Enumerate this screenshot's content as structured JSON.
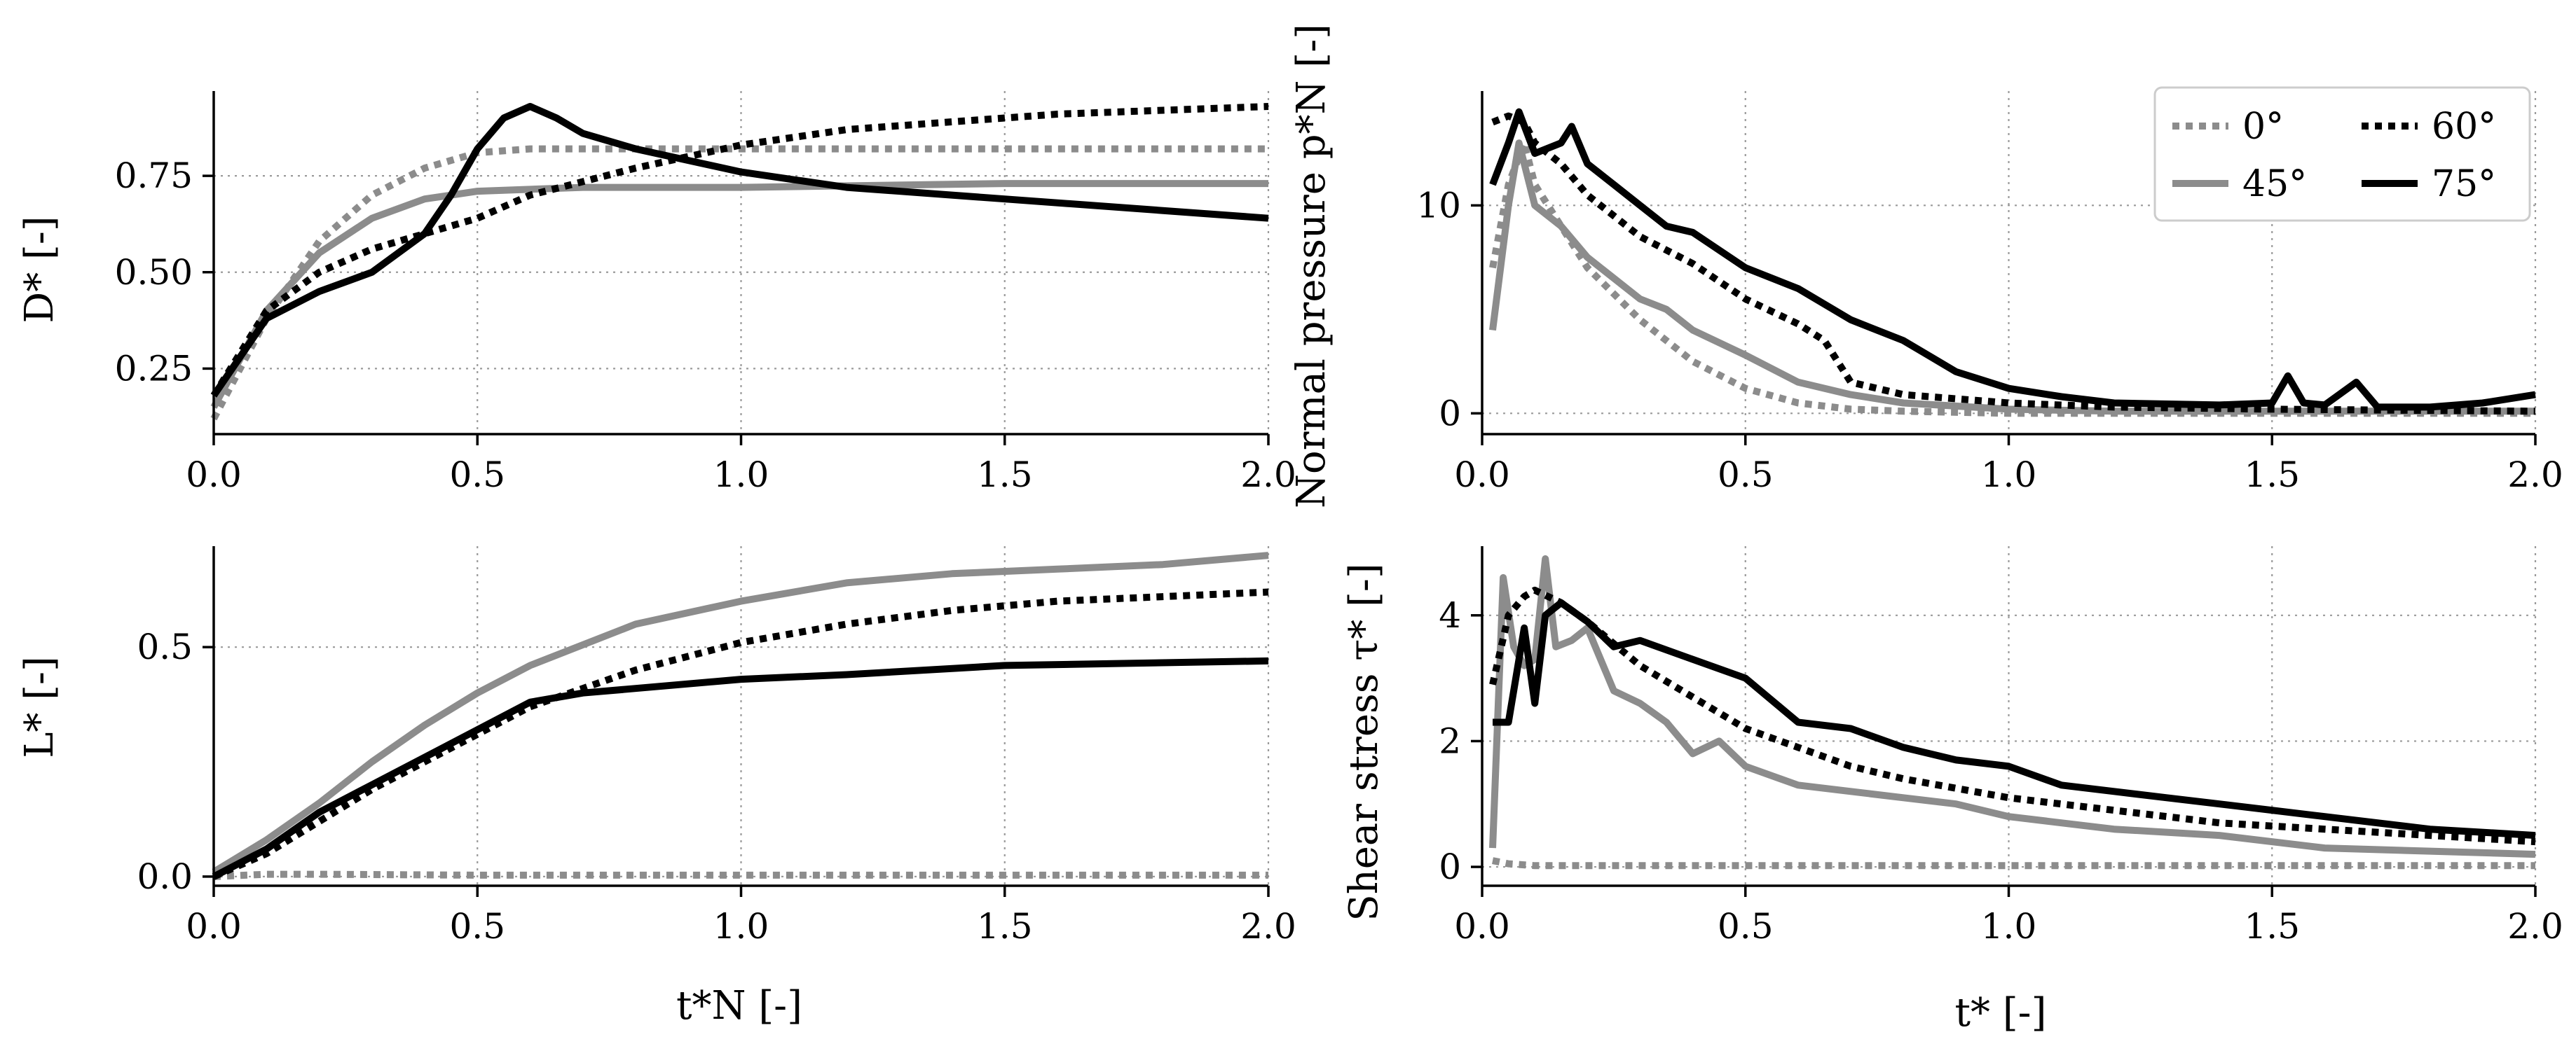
{
  "chart_data": [
    {
      "id": "D",
      "type": "line",
      "ylabel": "D* [-]",
      "xlabel": "",
      "xlim": [
        0,
        2.0
      ],
      "ylim": [
        0.08,
        0.97
      ],
      "xticks": [
        0,
        0.5,
        1.0,
        1.5,
        2.0
      ],
      "xtick_labels": [
        "0.0",
        "0.5",
        "1.0",
        "1.5",
        "2.0"
      ],
      "yticks": [
        0.25,
        0.5,
        0.75
      ],
      "ytick_labels": [
        "0.25",
        "0.50",
        "0.75"
      ],
      "grid": true,
      "series": [
        {
          "name": "0°",
          "x": [
            0,
            0.1,
            0.2,
            0.3,
            0.4,
            0.5,
            0.6,
            0.8,
            1.0,
            1.5,
            2.0
          ],
          "y": [
            0.12,
            0.38,
            0.58,
            0.7,
            0.77,
            0.81,
            0.82,
            0.82,
            0.82,
            0.82,
            0.82
          ]
        },
        {
          "name": "45°",
          "x": [
            0,
            0.1,
            0.2,
            0.3,
            0.4,
            0.5,
            0.7,
            1.0,
            1.5,
            2.0
          ],
          "y": [
            0.15,
            0.4,
            0.55,
            0.64,
            0.69,
            0.71,
            0.72,
            0.72,
            0.73,
            0.73
          ]
        },
        {
          "name": "60°",
          "x": [
            0,
            0.1,
            0.2,
            0.3,
            0.4,
            0.5,
            0.6,
            0.8,
            1.0,
            1.2,
            1.4,
            1.6,
            1.8,
            2.0
          ],
          "y": [
            0.18,
            0.4,
            0.5,
            0.56,
            0.6,
            0.64,
            0.7,
            0.77,
            0.83,
            0.87,
            0.89,
            0.91,
            0.92,
            0.93
          ]
        },
        {
          "name": "75°",
          "x": [
            0,
            0.1,
            0.2,
            0.3,
            0.4,
            0.45,
            0.5,
            0.55,
            0.6,
            0.65,
            0.7,
            0.8,
            1.0,
            1.2,
            1.5,
            2.0
          ],
          "y": [
            0.18,
            0.38,
            0.45,
            0.5,
            0.6,
            0.7,
            0.82,
            0.9,
            0.93,
            0.9,
            0.86,
            0.82,
            0.76,
            0.72,
            0.69,
            0.64
          ]
        }
      ]
    },
    {
      "id": "pN",
      "type": "line",
      "ylabel": "Normal pressure p*N [-]",
      "xlabel": "",
      "xlim": [
        0,
        2.0
      ],
      "ylim": [
        -1,
        15.5
      ],
      "xticks": [
        0,
        0.5,
        1.0,
        1.5,
        2.0
      ],
      "xtick_labels": [
        "0.0",
        "0.5",
        "1.0",
        "1.5",
        "2.0"
      ],
      "yticks": [
        0,
        10
      ],
      "ytick_labels": [
        "0",
        "10"
      ],
      "grid": true,
      "legend": {
        "placement": "top-right",
        "columns": 2
      },
      "series": [
        {
          "name": "0°",
          "x": [
            0.02,
            0.05,
            0.08,
            0.1,
            0.15,
            0.2,
            0.3,
            0.4,
            0.5,
            0.6,
            0.7,
            0.8,
            1.0,
            1.5,
            2.0
          ],
          "y": [
            7,
            11,
            13,
            11,
            9,
            7,
            4.5,
            2.5,
            1.2,
            0.5,
            0.2,
            0.1,
            0,
            0,
            0
          ]
        },
        {
          "name": "45°",
          "x": [
            0.02,
            0.05,
            0.07,
            0.1,
            0.15,
            0.2,
            0.25,
            0.3,
            0.35,
            0.4,
            0.5,
            0.6,
            0.7,
            0.8,
            1.0,
            1.2,
            1.5,
            2.0
          ],
          "y": [
            4,
            10,
            13,
            10,
            9,
            7.5,
            6.5,
            5.5,
            5,
            4,
            2.8,
            1.5,
            0.9,
            0.5,
            0.2,
            0.1,
            0.1,
            0.1
          ]
        },
        {
          "name": "60°",
          "x": [
            0.02,
            0.05,
            0.08,
            0.1,
            0.15,
            0.2,
            0.25,
            0.3,
            0.4,
            0.5,
            0.6,
            0.65,
            0.7,
            0.8,
            1.0,
            1.2,
            1.5,
            2.0
          ],
          "y": [
            14,
            14.3,
            14,
            13,
            12,
            10.5,
            9.5,
            8.5,
            7.2,
            5.5,
            4.3,
            3.5,
            1.5,
            0.9,
            0.5,
            0.3,
            0.2,
            0.1
          ]
        },
        {
          "name": "75°",
          "x": [
            0.02,
            0.05,
            0.07,
            0.1,
            0.15,
            0.17,
            0.2,
            0.25,
            0.3,
            0.35,
            0.4,
            0.5,
            0.6,
            0.7,
            0.8,
            0.9,
            1.0,
            1.1,
            1.2,
            1.4,
            1.5,
            1.53,
            1.56,
            1.6,
            1.66,
            1.7,
            1.8,
            1.9,
            2.0
          ],
          "y": [
            11,
            13,
            14.5,
            12.5,
            13,
            13.8,
            12,
            11,
            10,
            9,
            8.7,
            7,
            6,
            4.5,
            3.5,
            2,
            1.2,
            0.8,
            0.5,
            0.4,
            0.5,
            1.8,
            0.5,
            0.4,
            1.5,
            0.3,
            0.3,
            0.5,
            0.9
          ]
        }
      ]
    },
    {
      "id": "L",
      "type": "line",
      "ylabel": "L* [-]",
      "xlabel": "t*N [-]",
      "xlim": [
        0,
        2.0
      ],
      "ylim": [
        -0.02,
        0.72
      ],
      "xticks": [
        0,
        0.5,
        1.0,
        1.5,
        2.0
      ],
      "xtick_labels": [
        "0.0",
        "0.5",
        "1.0",
        "1.5",
        "2.0"
      ],
      "yticks": [
        0.0,
        0.5
      ],
      "ytick_labels": [
        "0.0",
        "0.5"
      ],
      "grid": true,
      "series": [
        {
          "name": "0°",
          "x": [
            0,
            0.1,
            0.2,
            0.5,
            1.0,
            1.5,
            2.0
          ],
          "y": [
            0,
            0.005,
            0.005,
            0.003,
            0.003,
            0.003,
            0.003
          ]
        },
        {
          "name": "45°",
          "x": [
            0,
            0.1,
            0.2,
            0.3,
            0.4,
            0.5,
            0.6,
            0.8,
            1.0,
            1.2,
            1.4,
            1.6,
            1.8,
            2.0
          ],
          "y": [
            0.01,
            0.08,
            0.16,
            0.25,
            0.33,
            0.4,
            0.46,
            0.55,
            0.6,
            0.64,
            0.66,
            0.67,
            0.68,
            0.7
          ]
        },
        {
          "name": "60°",
          "x": [
            0,
            0.1,
            0.2,
            0.3,
            0.4,
            0.5,
            0.6,
            0.7,
            0.8,
            1.0,
            1.2,
            1.4,
            1.6,
            1.8,
            2.0
          ],
          "y": [
            0,
            0.05,
            0.12,
            0.19,
            0.25,
            0.31,
            0.37,
            0.41,
            0.45,
            0.51,
            0.55,
            0.58,
            0.6,
            0.61,
            0.62
          ]
        },
        {
          "name": "75°",
          "x": [
            0,
            0.1,
            0.2,
            0.3,
            0.4,
            0.5,
            0.6,
            0.7,
            0.8,
            1.0,
            1.2,
            1.5,
            2.0
          ],
          "y": [
            0,
            0.06,
            0.14,
            0.2,
            0.26,
            0.32,
            0.38,
            0.4,
            0.41,
            0.43,
            0.44,
            0.46,
            0.47
          ]
        }
      ]
    },
    {
      "id": "tau",
      "type": "line",
      "ylabel": "Shear stress τ* [-]",
      "xlabel": "t* [-]",
      "xlim": [
        0,
        2.0
      ],
      "ylim": [
        -0.3,
        5.1
      ],
      "xticks": [
        0,
        0.5,
        1.0,
        1.5,
        2.0
      ],
      "xtick_labels": [
        "0.0",
        "0.5",
        "1.0",
        "1.5",
        "2.0"
      ],
      "yticks": [
        0,
        2,
        4
      ],
      "ytick_labels": [
        "0",
        "2",
        "4"
      ],
      "grid": true,
      "series": [
        {
          "name": "0°",
          "x": [
            0.02,
            0.05,
            0.1,
            0.2,
            0.5,
            1.0,
            1.5,
            2.0
          ],
          "y": [
            0.1,
            0.05,
            0.02,
            0.02,
            0.02,
            0.02,
            0.02,
            0.02
          ]
        },
        {
          "name": "45°",
          "x": [
            0.02,
            0.04,
            0.06,
            0.08,
            0.1,
            0.12,
            0.14,
            0.17,
            0.2,
            0.25,
            0.3,
            0.35,
            0.4,
            0.45,
            0.5,
            0.6,
            0.7,
            0.8,
            0.9,
            1.0,
            1.2,
            1.4,
            1.6,
            1.8,
            2.0
          ],
          "y": [
            0.3,
            4.6,
            3.5,
            3.2,
            3.3,
            4.9,
            3.5,
            3.6,
            3.8,
            2.8,
            2.6,
            2.3,
            1.8,
            2.0,
            1.6,
            1.3,
            1.2,
            1.1,
            1.0,
            0.8,
            0.6,
            0.5,
            0.3,
            0.25,
            0.2
          ]
        },
        {
          "name": "60°",
          "x": [
            0.02,
            0.05,
            0.08,
            0.1,
            0.15,
            0.2,
            0.3,
            0.4,
            0.5,
            0.6,
            0.7,
            0.8,
            1.0,
            1.2,
            1.4,
            1.6,
            1.8,
            2.0
          ],
          "y": [
            2.9,
            4.0,
            4.3,
            4.4,
            4.2,
            3.9,
            3.2,
            2.7,
            2.2,
            1.9,
            1.6,
            1.4,
            1.1,
            0.9,
            0.7,
            0.6,
            0.5,
            0.4
          ]
        },
        {
          "name": "75°",
          "x": [
            0.02,
            0.05,
            0.08,
            0.1,
            0.12,
            0.15,
            0.2,
            0.25,
            0.3,
            0.4,
            0.5,
            0.6,
            0.7,
            0.8,
            0.9,
            1.0,
            1.1,
            1.2,
            1.3,
            1.4,
            1.5,
            1.6,
            1.8,
            2.0
          ],
          "y": [
            2.3,
            2.3,
            3.8,
            2.6,
            4.0,
            4.2,
            3.9,
            3.5,
            3.6,
            3.3,
            3.0,
            2.3,
            2.2,
            1.9,
            1.7,
            1.6,
            1.3,
            1.2,
            1.1,
            1.0,
            0.9,
            0.8,
            0.6,
            0.5
          ]
        }
      ]
    }
  ],
  "legend": {
    "items": [
      {
        "label": "0°",
        "color": "#8c8c8c",
        "style": "dotted"
      },
      {
        "label": "45°",
        "color": "#8c8c8c",
        "style": "solid"
      },
      {
        "label": "60°",
        "color": "#000000",
        "style": "dotted"
      },
      {
        "label": "75°",
        "color": "#000000",
        "style": "solid"
      }
    ]
  },
  "colors": {
    "gray": "#8c8c8c",
    "black": "#000000",
    "grid": "#9a9a9a"
  }
}
